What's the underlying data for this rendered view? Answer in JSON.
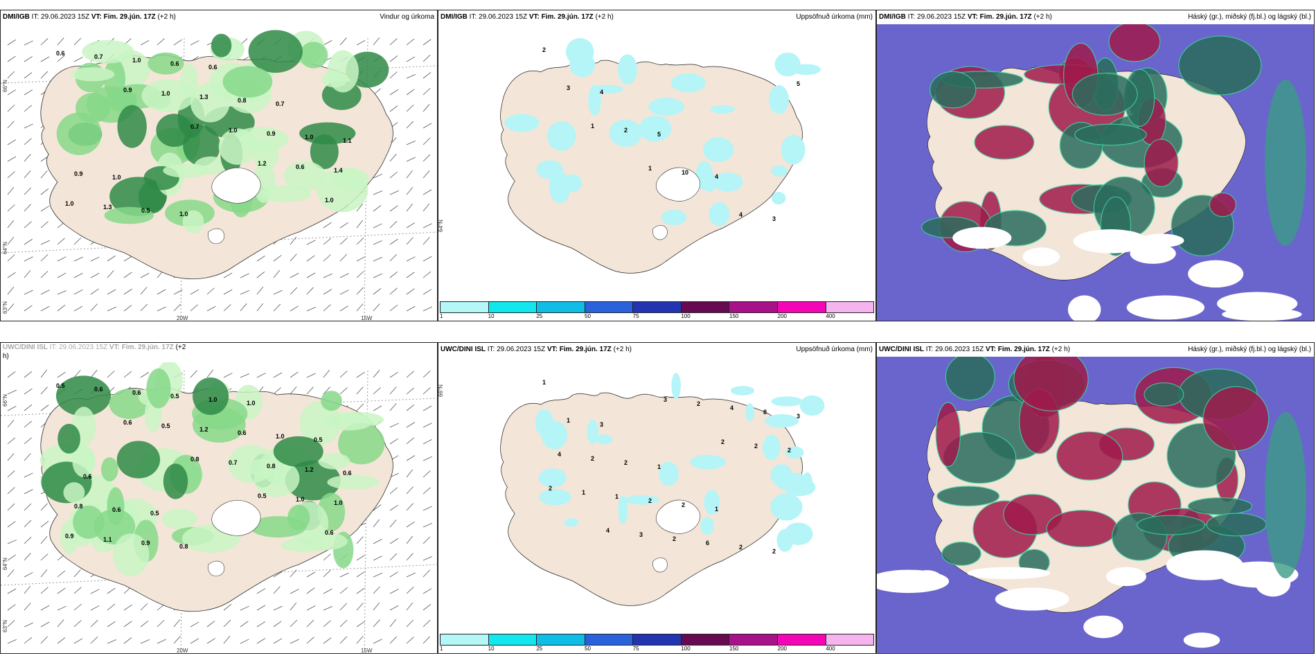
{
  "colors": {
    "land": "#f3e6d8",
    "sea_wind": "#ffffff",
    "sea_cloud": "#6a65cc",
    "precip_light": "#c9f5c4",
    "precip_mid": "#86d88a",
    "precip_dark": "#2f8a46",
    "accum": "#b5f4f7",
    "cloud_high": "#2a6d5d",
    "cloud_mid": "#a01a4c",
    "cloud_edge": "#3fd2a0"
  },
  "panels": [
    {
      "source": "DMI/IGB",
      "it": "IT: 29.06.2023 15Z",
      "vt": "VT: Fim. 29.jún. 17Z",
      "offset": "(+2 h)",
      "title": "Vindur og úrkoma",
      "kind": "wind",
      "labels": [
        "0.6",
        "0.9",
        "0.7",
        "1.2",
        "1.0",
        "0.7",
        "1.0",
        "1.0",
        "0.6",
        "1.0",
        "1.0",
        "1.3",
        "0.9",
        "1.4",
        "1.3",
        "0.6",
        "0.8",
        "1.0",
        "0.9",
        "0.5",
        "0.6",
        "0.7",
        "1.1",
        "1.0",
        "1.0"
      ]
    },
    {
      "source": "DMI/IGB",
      "it": "IT: 29.06.2023 15Z",
      "vt": "VT: Fim. 29.jún. 17Z",
      "offset": "(+2 h)",
      "title": "Uppsöfnuð úrkoma (mm)",
      "kind": "accum",
      "labels": [
        "2",
        "4",
        "5",
        "4",
        "3",
        "3",
        "2",
        "10",
        "4",
        "5",
        "1",
        "1"
      ]
    },
    {
      "source": "DMI/IGB",
      "it": "IT: 29.06.2023 15Z",
      "vt": "VT: Fim. 29.jún. 17Z",
      "offset": "(+2 h)",
      "title": "Háský (gr.), miðský (fj.bl.) og lágský (bl.)",
      "kind": "cloud",
      "labels": []
    },
    {
      "source": "UWC/DINI ISL",
      "it": "IT: 29.06.2023 15Z",
      "vt": "VT: Fim. 29.jún. 17Z",
      "offset": "(+2",
      "offset2": "h)",
      "title": "",
      "kind": "wind",
      "labels": [
        "0.5",
        "0.6",
        "0.8",
        "0.5",
        "0.6",
        "0.6",
        "0.5",
        "0.7",
        "1.0",
        "0.9",
        "0.6",
        "1.2",
        "0.8",
        "1.0",
        "1.1",
        "0.5",
        "0.6",
        "1.2",
        "0.8",
        "0.9",
        "1.0",
        "1.0",
        "0.6",
        "0.6",
        "0.8",
        "1.0",
        "0.5",
        "0.6",
        "0.5"
      ]
    },
    {
      "source": "UWC/DINI ISL",
      "it": "IT: 29.06.2023 15Z",
      "vt": "VT: Fim. 29.jún. 17Z",
      "offset": "(+2 h)",
      "title": "Uppsöfnuð úrkoma (mm)",
      "kind": "accum",
      "labels": [
        "1",
        "3",
        "1",
        "1",
        "2",
        "1",
        "2",
        "2",
        "2",
        "3",
        "2",
        "2",
        "6",
        "8",
        "4",
        "1",
        "2",
        "4",
        "2",
        "1",
        "3",
        "2",
        "2",
        "2",
        "4",
        "3",
        "2"
      ]
    },
    {
      "source": "UWC/DINI ISL",
      "it": "IT: 29.06.2023 15Z",
      "vt": "VT: Fim. 29.jún. 17Z",
      "offset": "(+2 h)",
      "title": "Háský (gr.), miðský (fj.bl.) og lágský (bl.)",
      "kind": "cloud",
      "labels": []
    }
  ],
  "axes": {
    "lat_66": "66°N",
    "lat_64": "64°N",
    "lat_63": "63°N",
    "lon_20": "20W",
    "lon_15": "15W"
  },
  "colorbar": {
    "ticks": [
      "1",
      "10",
      "25",
      "50",
      "75",
      "100",
      "150",
      "200",
      "400"
    ],
    "colors": [
      "#b5f7f7",
      "#12e7ee",
      "#10bde6",
      "#2a62dd",
      "#2234b0",
      "#660a52",
      "#a81288",
      "#f406b6",
      "#f6b4ee"
    ]
  }
}
